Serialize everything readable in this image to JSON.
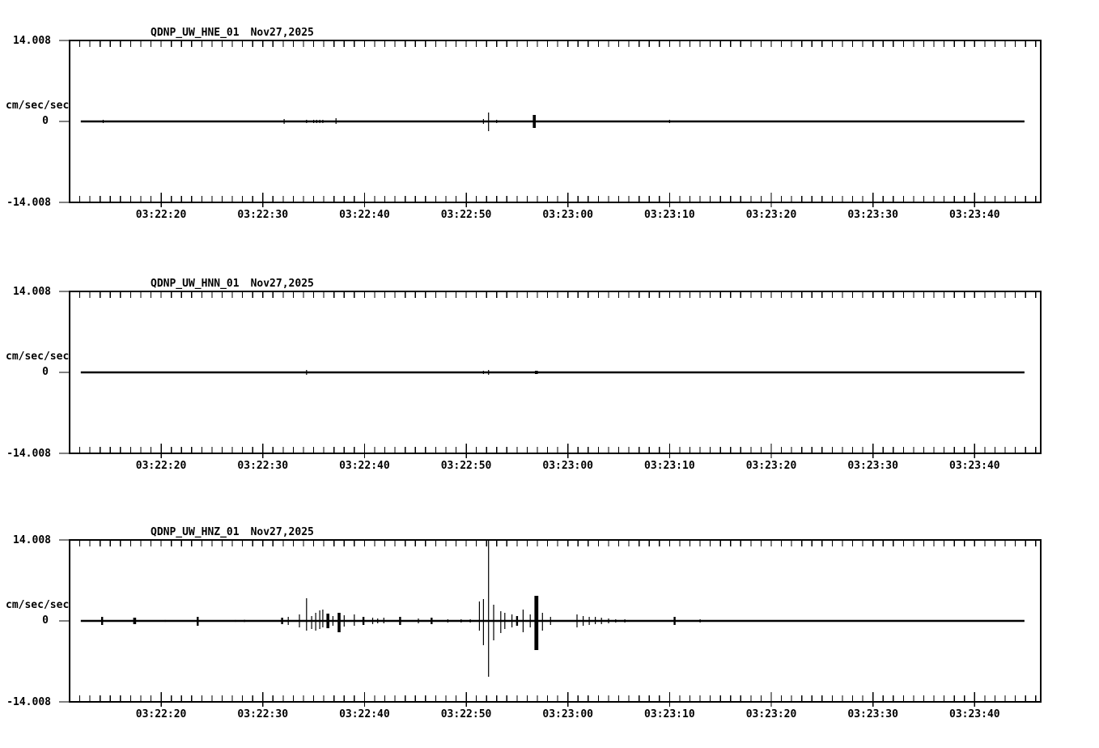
{
  "figure": {
    "background": "#ffffff",
    "ink": "#000000",
    "kind": "three-channel strong-motion seismogram traces"
  },
  "panels": [
    {
      "station": "QDNP_UW_HNE_01",
      "date": "Nov27,2025",
      "units": "cm/sec/sec",
      "ymax_label": "14.008",
      "yzero_label": "0",
      "ymin_label": "-14.008"
    },
    {
      "station": "QDNP_UW_HNN_01",
      "date": "Nov27,2025",
      "units": "cm/sec/sec",
      "ymax_label": "14.008",
      "yzero_label": "0",
      "ymin_label": "-14.008"
    },
    {
      "station": "QDNP_UW_HNZ_01",
      "date": "Nov27,2025",
      "units": "cm/sec/sec",
      "ymax_label": "14.008",
      "yzero_label": "0",
      "ymin_label": "-14.008"
    }
  ],
  "chart_data": [
    {
      "type": "line",
      "title": "QDNP_UW_HNE_01  Nov27,2025",
      "ylabel": "cm/sec/sec",
      "ylim": [
        -14.008,
        14.008
      ],
      "baseline_value": 0,
      "time_note": "event t values are seconds after 03:22:00; labeled ticks every 10 s, minor ticks every 1 s",
      "axis_start_s": 11.0,
      "axis_end_s": 106.5,
      "trace_start_s": 12.1,
      "trace_end_s": 104.9,
      "label_ticks_s": [
        20,
        30,
        40,
        50,
        60,
        70,
        80,
        90,
        100
      ],
      "x_ticklabels": [
        "03:22:20",
        "03:22:30",
        "03:22:40",
        "03:22:50",
        "03:23:00",
        "03:23:10",
        "03:23:20",
        "03:23:30",
        "03:23:40"
      ],
      "events": [
        [
          14.3,
          0.28,
          0.28,
          1
        ],
        [
          32.1,
          0.42,
          0.42,
          1
        ],
        [
          34.3,
          0.28,
          0.28,
          1
        ],
        [
          35.0,
          0.28,
          0.28,
          1
        ],
        [
          35.3,
          0.28,
          0.28,
          1
        ],
        [
          35.6,
          0.28,
          0.28,
          1
        ],
        [
          35.9,
          0.28,
          0.28,
          1
        ],
        [
          37.2,
          0.56,
          0.42,
          1
        ],
        [
          45.2,
          0.14,
          0.14,
          1
        ],
        [
          51.7,
          0.42,
          0.42,
          1
        ],
        [
          52.2,
          1.54,
          1.68,
          1
        ],
        [
          53.0,
          0.28,
          0.28,
          1
        ],
        [
          53.5,
          0.14,
          0.14,
          1
        ],
        [
          56.7,
          1.12,
          1.12,
          3
        ],
        [
          60.9,
          0.14,
          0.14,
          1
        ],
        [
          70.0,
          0.28,
          0.28,
          1
        ]
      ]
    },
    {
      "type": "line",
      "title": "QDNP_UW_HNN_01  Nov27,2025",
      "ylabel": "cm/sec/sec",
      "ylim": [
        -14.008,
        14.008
      ],
      "baseline_value": 0,
      "time_note": "event t values are seconds after 03:22:00; labeled ticks every 10 s, minor ticks every 1 s",
      "axis_start_s": 11.0,
      "axis_end_s": 106.5,
      "trace_start_s": 12.1,
      "trace_end_s": 104.9,
      "label_ticks_s": [
        20,
        30,
        40,
        50,
        60,
        70,
        80,
        90,
        100
      ],
      "x_ticklabels": [
        "03:22:20",
        "03:22:30",
        "03:22:40",
        "03:22:50",
        "03:23:00",
        "03:23:10",
        "03:23:20",
        "03:23:30",
        "03:23:40"
      ],
      "events": [
        [
          34.3,
          0.42,
          0.42,
          1
        ],
        [
          51.4,
          0.14,
          0.14,
          1
        ],
        [
          51.7,
          0.28,
          0.28,
          1
        ],
        [
          52.2,
          0.42,
          0.42,
          1
        ],
        [
          56.9,
          0.28,
          0.28,
          3
        ]
      ]
    },
    {
      "type": "line",
      "title": "QDNP_UW_HNZ_01  Nov27,2025",
      "ylabel": "cm/sec/sec",
      "ylim": [
        -14.008,
        14.008
      ],
      "baseline_value": 0,
      "time_note": "event t values are seconds after 03:22:00; main burst ~03:22:52 clipped at +14.008",
      "axis_start_s": 11.0,
      "axis_end_s": 106.5,
      "trace_start_s": 12.1,
      "trace_end_s": 104.9,
      "label_ticks_s": [
        20,
        30,
        40,
        50,
        60,
        70,
        80,
        90,
        100
      ],
      "x_ticklabels": [
        "03:22:20",
        "03:22:30",
        "03:22:40",
        "03:22:50",
        "03:23:00",
        "03:23:10",
        "03:23:20",
        "03:23:30",
        "03:23:40"
      ],
      "events": [
        [
          14.2,
          0.7,
          0.7,
          2
        ],
        [
          17.4,
          0.56,
          0.56,
          3
        ],
        [
          20.4,
          0.15,
          0.15,
          1
        ],
        [
          23.6,
          0.7,
          0.84,
          2
        ],
        [
          27.3,
          0.15,
          0.15,
          1
        ],
        [
          28.2,
          0.2,
          0.2,
          1
        ],
        [
          31.9,
          0.56,
          0.56,
          2
        ],
        [
          32.5,
          0.7,
          0.7,
          1
        ],
        [
          33.6,
          1.12,
          1.12,
          1
        ],
        [
          34.3,
          3.92,
          1.68,
          1
        ],
        [
          34.8,
          0.84,
          1.4,
          1
        ],
        [
          35.2,
          1.4,
          1.68,
          1
        ],
        [
          35.6,
          1.82,
          1.4,
          1
        ],
        [
          35.9,
          1.96,
          1.12,
          1
        ],
        [
          36.4,
          1.26,
          1.26,
          3
        ],
        [
          36.9,
          0.84,
          0.84,
          1
        ],
        [
          37.5,
          1.4,
          1.96,
          3
        ],
        [
          38.0,
          0.98,
          0.98,
          1
        ],
        [
          39.0,
          1.12,
          0.84,
          1
        ],
        [
          39.9,
          0.7,
          0.7,
          2
        ],
        [
          40.8,
          0.56,
          0.56,
          1
        ],
        [
          41.3,
          0.42,
          0.42,
          1
        ],
        [
          41.9,
          0.56,
          0.42,
          1
        ],
        [
          43.5,
          0.7,
          0.7,
          2
        ],
        [
          45.3,
          0.42,
          0.42,
          1
        ],
        [
          46.6,
          0.56,
          0.56,
          2
        ],
        [
          48.2,
          0.28,
          0.28,
          1
        ],
        [
          49.5,
          0.28,
          0.28,
          1
        ],
        [
          50.4,
          0.28,
          0.28,
          1
        ],
        [
          51.3,
          3.36,
          1.68,
          1
        ],
        [
          51.7,
          3.78,
          4.2,
          1
        ],
        [
          52.2,
          14.0,
          9.66,
          1
        ],
        [
          52.7,
          2.8,
          3.36,
          1
        ],
        [
          53.4,
          1.68,
          2.1,
          1
        ],
        [
          53.8,
          1.4,
          1.4,
          1
        ],
        [
          54.5,
          1.12,
          1.12,
          1
        ],
        [
          55.0,
          0.84,
          0.84,
          2
        ],
        [
          55.6,
          1.96,
          1.96,
          1
        ],
        [
          56.3,
          1.12,
          1.12,
          1
        ],
        [
          56.9,
          4.34,
          5.04,
          4
        ],
        [
          57.5,
          1.4,
          1.68,
          1
        ],
        [
          58.3,
          0.7,
          0.7,
          1
        ],
        [
          60.9,
          1.12,
          1.12,
          1
        ],
        [
          61.5,
          0.84,
          0.84,
          1
        ],
        [
          62.1,
          0.7,
          0.7,
          1
        ],
        [
          62.7,
          0.7,
          0.56,
          1
        ],
        [
          63.3,
          0.56,
          0.56,
          1
        ],
        [
          64.0,
          0.42,
          0.42,
          1
        ],
        [
          64.7,
          0.28,
          0.28,
          1
        ],
        [
          65.6,
          0.28,
          0.28,
          1
        ],
        [
          70.5,
          0.7,
          0.7,
          2
        ],
        [
          73.0,
          0.28,
          0.28,
          1
        ]
      ]
    }
  ]
}
